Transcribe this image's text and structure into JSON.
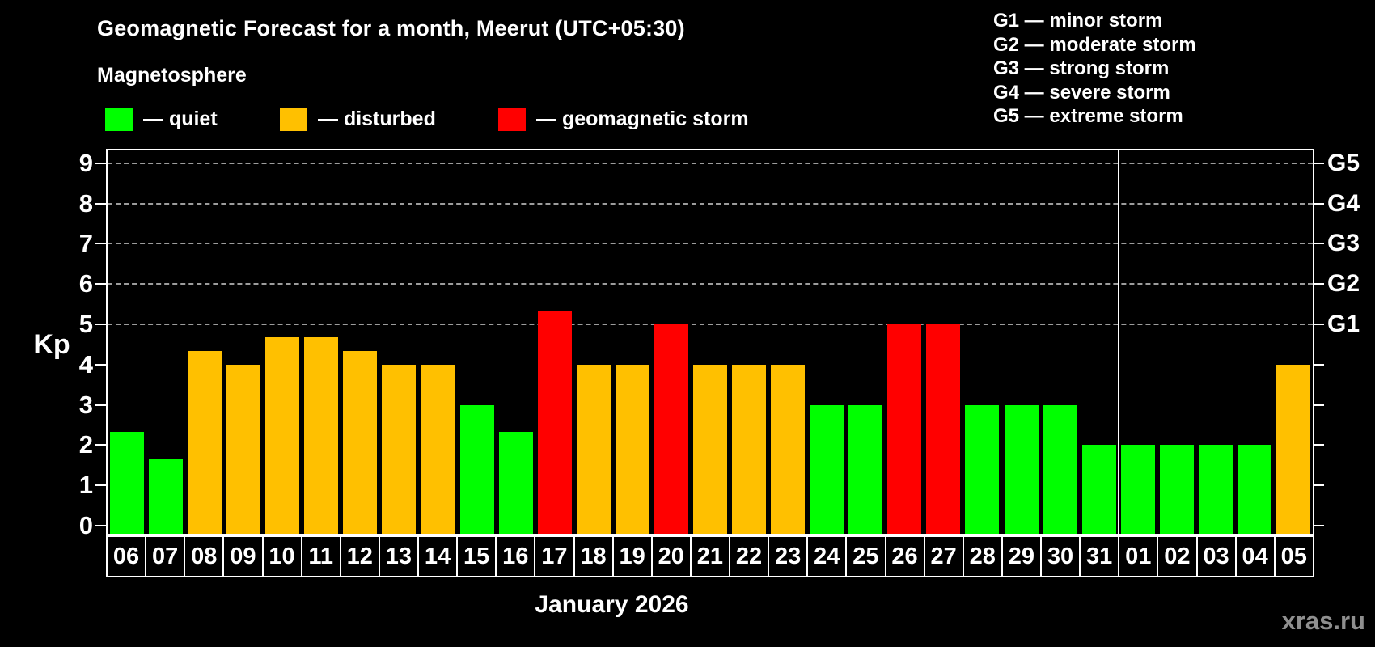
{
  "header": {
    "title": "Geomagnetic Forecast for a month, Meerut (UTC+05:30)",
    "subtitle": "Magnetosphere",
    "legend": [
      {
        "key": "quiet",
        "label": "— quiet",
        "color": "#00ff00"
      },
      {
        "key": "disturbed",
        "label": "— disturbed",
        "color": "#ffc000"
      },
      {
        "key": "storm",
        "label": "— geomagnetic storm",
        "color": "#ff0000"
      }
    ],
    "storm_scale": [
      {
        "label": "G1 — minor storm"
      },
      {
        "label": "G2 — moderate storm"
      },
      {
        "label": "G3 — strong storm"
      },
      {
        "label": "G4 — severe storm"
      },
      {
        "label": "G5 — extreme storm"
      }
    ]
  },
  "chart_data": {
    "type": "bar",
    "title": "Geomagnetic Forecast for a month, Meerut (UTC+05:30)",
    "xlabel": "January 2026",
    "ylabel": "Kp",
    "ylim": [
      0,
      9
    ],
    "yticks": [
      0,
      1,
      2,
      3,
      4,
      5,
      6,
      7,
      8,
      9
    ],
    "gridlines_at": [
      5,
      6,
      7,
      8,
      9
    ],
    "grid": "dashed, only at G-storm levels 5-9",
    "right_axis_labels": [
      {
        "kp": 5,
        "label": "G1"
      },
      {
        "kp": 6,
        "label": "G2"
      },
      {
        "kp": 7,
        "label": "G3"
      },
      {
        "kp": 8,
        "label": "G4"
      },
      {
        "kp": 9,
        "label": "G5"
      }
    ],
    "categories": [
      "06",
      "07",
      "08",
      "09",
      "10",
      "11",
      "12",
      "13",
      "14",
      "15",
      "16",
      "17",
      "18",
      "19",
      "20",
      "21",
      "22",
      "23",
      "24",
      "25",
      "26",
      "27",
      "28",
      "29",
      "30",
      "31",
      "01",
      "02",
      "03",
      "04",
      "05"
    ],
    "values": [
      2.33,
      1.67,
      4.33,
      4,
      4.67,
      4.67,
      4.33,
      4,
      4,
      3,
      2.33,
      5.33,
      4,
      4,
      5,
      4,
      4,
      4,
      3,
      3,
      5,
      5,
      3,
      3,
      3,
      2,
      2,
      2,
      2,
      2,
      4
    ],
    "status": [
      "quiet",
      "quiet",
      "disturbed",
      "disturbed",
      "disturbed",
      "disturbed",
      "disturbed",
      "disturbed",
      "disturbed",
      "quiet",
      "quiet",
      "storm",
      "disturbed",
      "disturbed",
      "storm",
      "disturbed",
      "disturbed",
      "disturbed",
      "quiet",
      "quiet",
      "storm",
      "storm",
      "quiet",
      "quiet",
      "quiet",
      "quiet",
      "quiet",
      "quiet",
      "quiet",
      "quiet",
      "disturbed"
    ],
    "colors": {
      "quiet": "#00ff00",
      "disturbed": "#ffc000",
      "storm": "#ff0000"
    },
    "month_boundary_after_index": 25,
    "legend_position": "top-left"
  },
  "footer": {
    "month_label": "January 2026",
    "watermark": "xras.ru"
  }
}
